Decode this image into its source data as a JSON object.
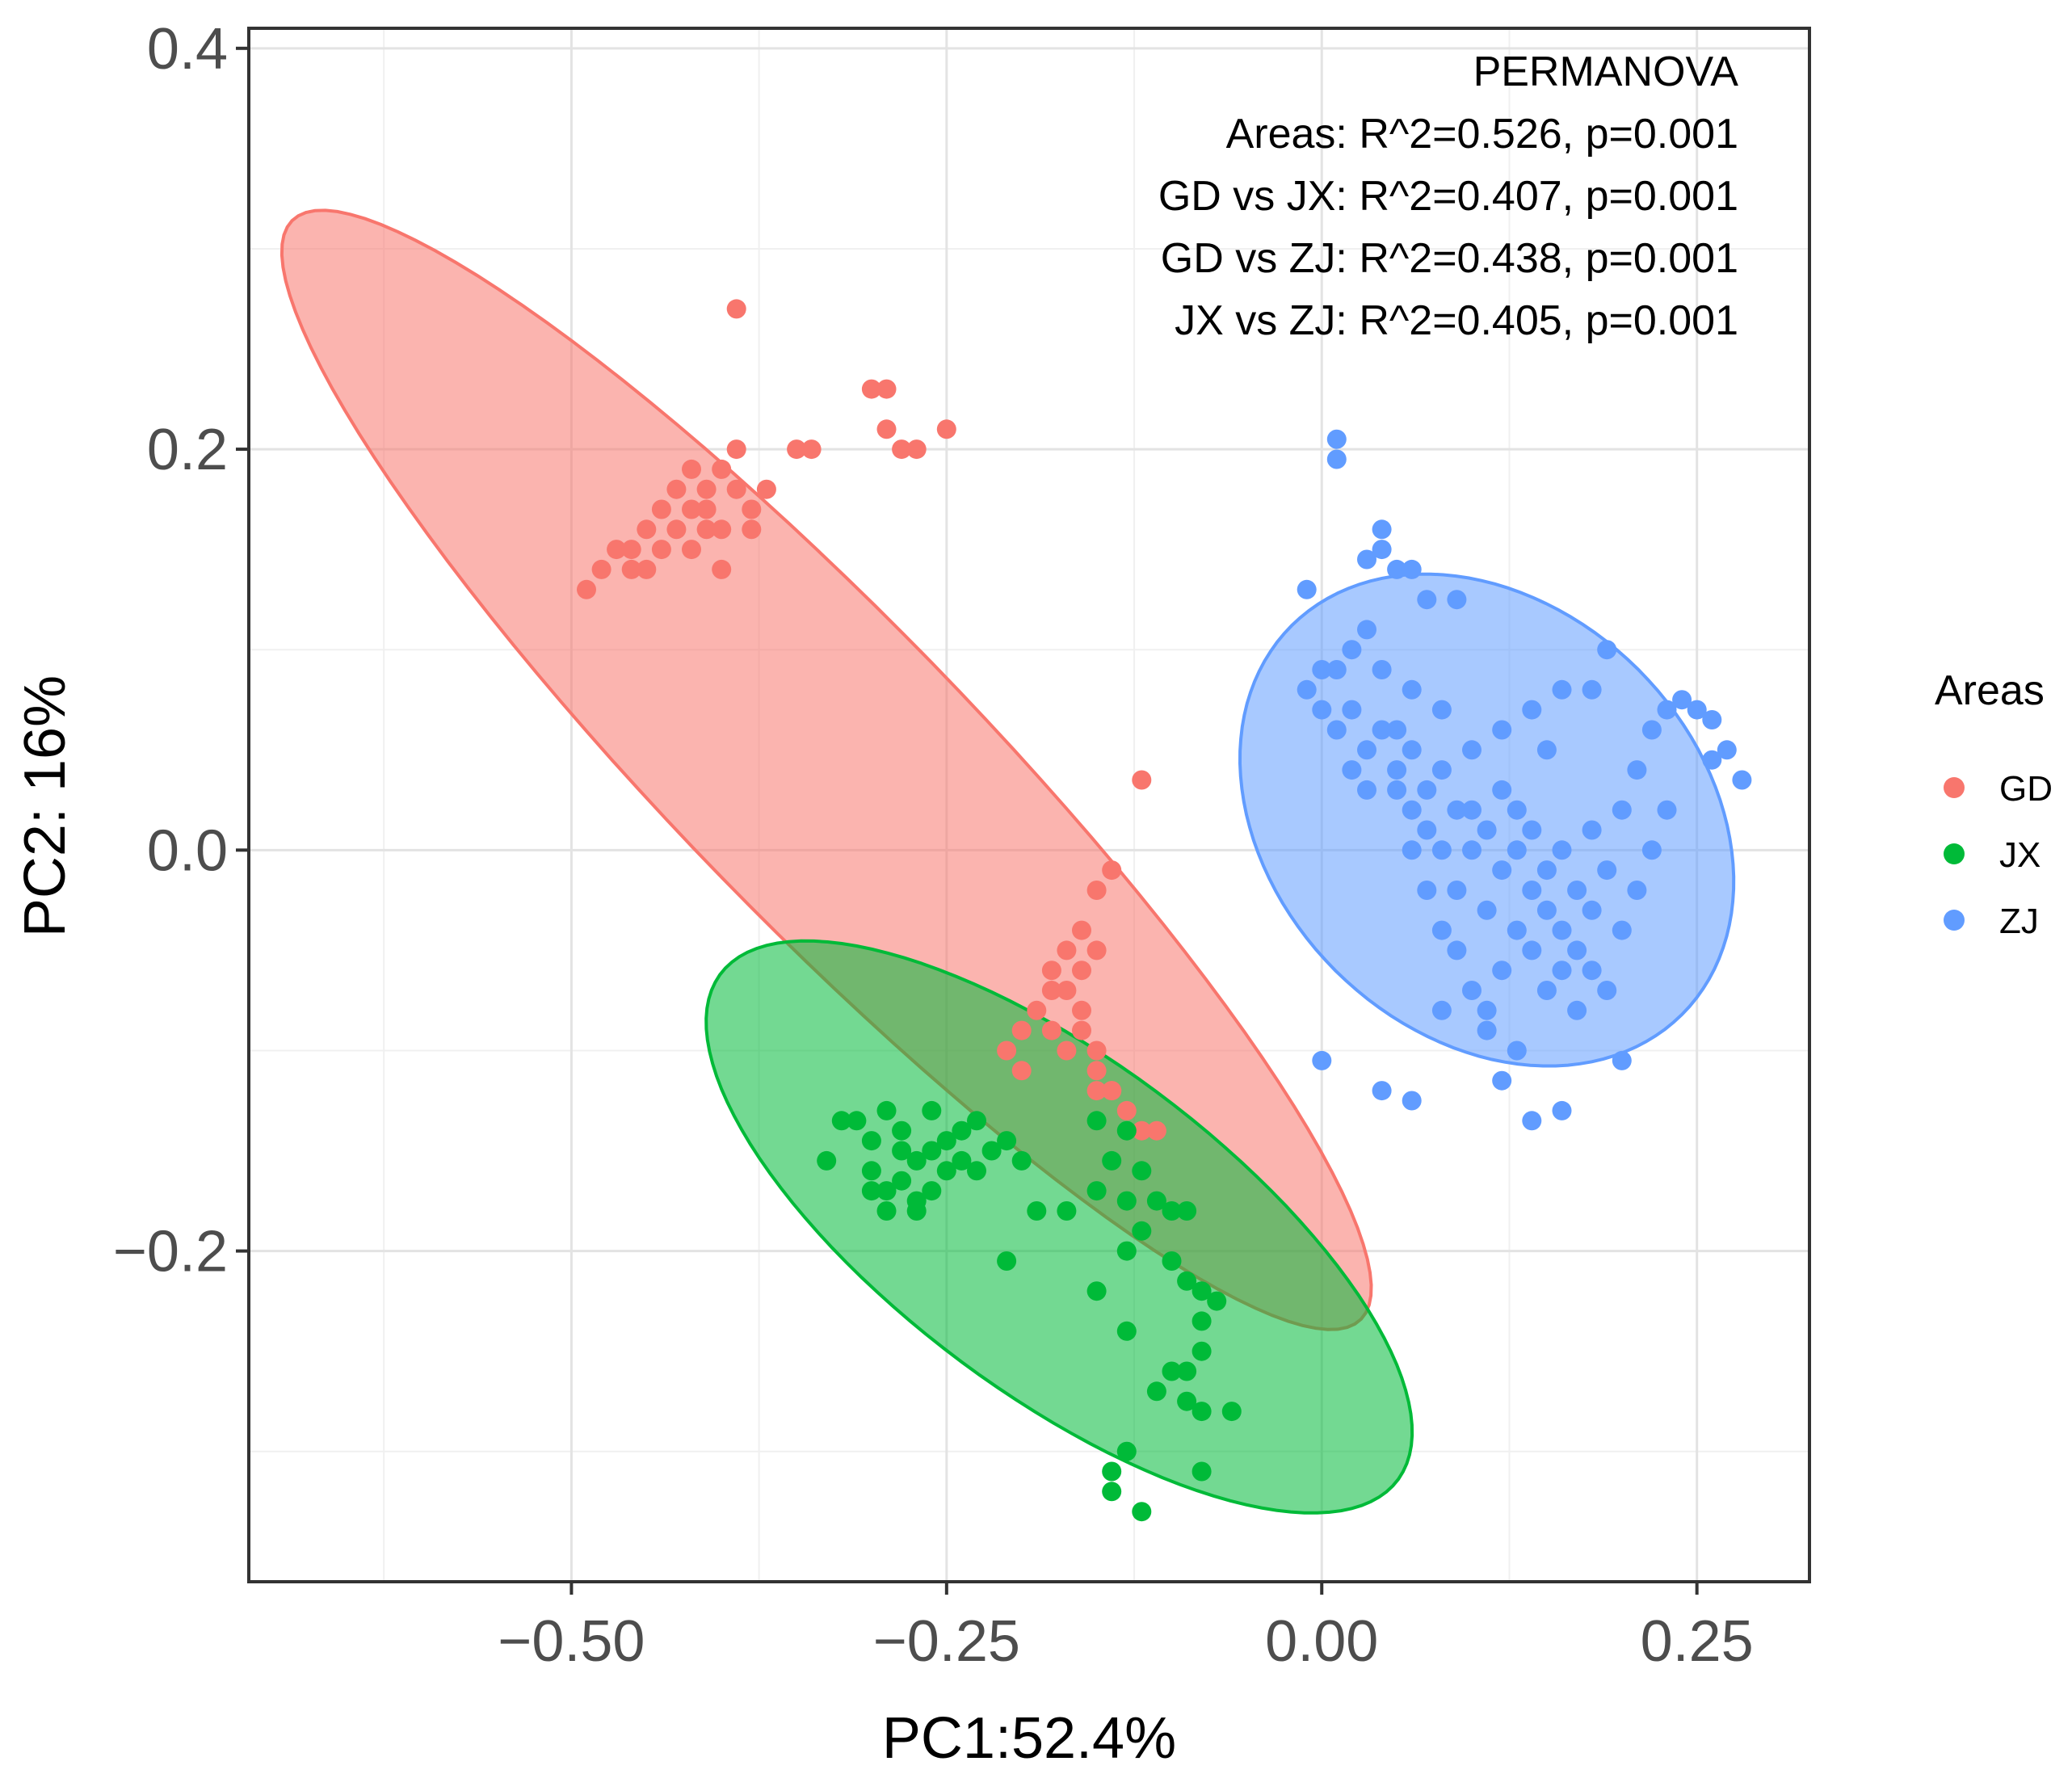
{
  "chart_data": {
    "type": "scatter",
    "xlabel": "PC1:52.4%",
    "ylabel": "PC2: 16%",
    "xlim": [
      -0.715,
      0.325
    ],
    "ylim": [
      -0.365,
      0.41
    ],
    "x_ticks": [
      -0.5,
      -0.25,
      0.0,
      0.25
    ],
    "x_tick_labels": [
      "−0.50",
      "−0.25",
      "0.00",
      "0.25"
    ],
    "y_ticks": [
      -0.2,
      0.0,
      0.2,
      0.4
    ],
    "y_tick_labels": [
      "−0.2",
      "0.0",
      "0.2",
      "0.4"
    ],
    "grid": true,
    "legend": {
      "title": "Areas",
      "position": "right",
      "entries": [
        "GD",
        "JX",
        "ZJ"
      ]
    },
    "annotation": {
      "lines": [
        "PERMANOVA",
        "Areas: R^2=0.526, p=0.001",
        "GD vs JX: R^2=0.407, p=0.001",
        "GD vs ZJ: R^2=0.438, p=0.001",
        "JX vs ZJ: R^2=0.405, p=0.001"
      ],
      "position": "top-right"
    },
    "series": [
      {
        "name": "GD",
        "color": "#F8766D",
        "ellipse": {
          "center": [
            -0.33,
            0.04
          ],
          "semi_axes": [
            0.45,
            0.085
          ],
          "angle_deg": -37
        },
        "points": [
          [
            -0.49,
            0.13
          ],
          [
            -0.48,
            0.14
          ],
          [
            -0.47,
            0.15
          ],
          [
            -0.46,
            0.14
          ],
          [
            -0.46,
            0.15
          ],
          [
            -0.45,
            0.16
          ],
          [
            -0.45,
            0.14
          ],
          [
            -0.44,
            0.15
          ],
          [
            -0.44,
            0.17
          ],
          [
            -0.43,
            0.18
          ],
          [
            -0.43,
            0.16
          ],
          [
            -0.42,
            0.19
          ],
          [
            -0.42,
            0.17
          ],
          [
            -0.42,
            0.15
          ],
          [
            -0.41,
            0.18
          ],
          [
            -0.41,
            0.16
          ],
          [
            -0.41,
            0.17
          ],
          [
            -0.4,
            0.19
          ],
          [
            -0.4,
            0.16
          ],
          [
            -0.4,
            0.14
          ],
          [
            -0.39,
            0.18
          ],
          [
            -0.39,
            0.2
          ],
          [
            -0.38,
            0.17
          ],
          [
            -0.38,
            0.16
          ],
          [
            -0.39,
            0.27
          ],
          [
            -0.37,
            0.18
          ],
          [
            -0.35,
            0.2
          ],
          [
            -0.34,
            0.2
          ],
          [
            -0.3,
            0.23
          ],
          [
            -0.29,
            0.23
          ],
          [
            -0.29,
            0.21
          ],
          [
            -0.28,
            0.2
          ],
          [
            -0.27,
            0.2
          ],
          [
            -0.25,
            0.21
          ],
          [
            -0.12,
            0.035
          ],
          [
            -0.14,
            -0.01
          ],
          [
            -0.15,
            -0.02
          ],
          [
            -0.16,
            -0.04
          ],
          [
            -0.17,
            -0.05
          ],
          [
            -0.18,
            -0.06
          ],
          [
            -0.17,
            -0.07
          ],
          [
            -0.16,
            -0.06
          ],
          [
            -0.15,
            -0.05
          ],
          [
            -0.16,
            -0.08
          ],
          [
            -0.18,
            -0.07
          ],
          [
            -0.19,
            -0.08
          ],
          [
            -0.2,
            -0.09
          ],
          [
            -0.21,
            -0.1
          ],
          [
            -0.18,
            -0.09
          ],
          [
            -0.16,
            -0.09
          ],
          [
            -0.15,
            -0.1
          ],
          [
            -0.15,
            -0.11
          ],
          [
            -0.14,
            -0.12
          ],
          [
            -0.14,
            -0.12
          ],
          [
            -0.13,
            -0.13
          ],
          [
            -0.12,
            -0.14
          ],
          [
            -0.11,
            -0.14
          ],
          [
            -0.2,
            -0.11
          ],
          [
            -0.17,
            -0.1
          ],
          [
            -0.15,
            -0.12
          ]
        ]
      },
      {
        "name": "JX",
        "color": "#00BA38",
        "ellipse": {
          "center": [
            -0.175,
            -0.188
          ],
          "semi_axes": [
            0.26,
            0.09
          ],
          "angle_deg": -27
        },
        "points": [
          [
            -0.33,
            -0.155
          ],
          [
            -0.32,
            -0.135
          ],
          [
            -0.31,
            -0.135
          ],
          [
            -0.3,
            -0.145
          ],
          [
            -0.3,
            -0.16
          ],
          [
            -0.29,
            -0.17
          ],
          [
            -0.29,
            -0.18
          ],
          [
            -0.29,
            -0.13
          ],
          [
            -0.28,
            -0.14
          ],
          [
            -0.28,
            -0.15
          ],
          [
            -0.28,
            -0.165
          ],
          [
            -0.27,
            -0.155
          ],
          [
            -0.27,
            -0.175
          ],
          [
            -0.26,
            -0.13
          ],
          [
            -0.26,
            -0.15
          ],
          [
            -0.26,
            -0.17
          ],
          [
            -0.25,
            -0.16
          ],
          [
            -0.25,
            -0.145
          ],
          [
            -0.24,
            -0.155
          ],
          [
            -0.24,
            -0.14
          ],
          [
            -0.23,
            -0.16
          ],
          [
            -0.23,
            -0.135
          ],
          [
            -0.22,
            -0.15
          ],
          [
            -0.21,
            -0.145
          ],
          [
            -0.2,
            -0.155
          ],
          [
            -0.19,
            -0.18
          ],
          [
            -0.21,
            -0.205
          ],
          [
            -0.15,
            -0.135
          ],
          [
            -0.15,
            -0.17
          ],
          [
            -0.14,
            -0.155
          ],
          [
            -0.13,
            -0.14
          ],
          [
            -0.13,
            -0.175
          ],
          [
            -0.12,
            -0.16
          ],
          [
            -0.12,
            -0.19
          ],
          [
            -0.11,
            -0.175
          ],
          [
            -0.1,
            -0.18
          ],
          [
            -0.1,
            -0.205
          ],
          [
            -0.09,
            -0.18
          ],
          [
            -0.09,
            -0.215
          ],
          [
            -0.08,
            -0.22
          ],
          [
            -0.08,
            -0.235
          ],
          [
            -0.07,
            -0.225
          ],
          [
            -0.08,
            -0.25
          ],
          [
            -0.09,
            -0.26
          ],
          [
            -0.1,
            -0.26
          ],
          [
            -0.11,
            -0.27
          ],
          [
            -0.09,
            -0.275
          ],
          [
            -0.08,
            -0.28
          ],
          [
            -0.06,
            -0.28
          ],
          [
            -0.13,
            -0.2
          ],
          [
            -0.15,
            -0.22
          ],
          [
            -0.13,
            -0.24
          ],
          [
            -0.13,
            -0.3
          ],
          [
            -0.14,
            -0.31
          ],
          [
            -0.14,
            -0.32
          ],
          [
            -0.12,
            -0.33
          ],
          [
            -0.08,
            -0.31
          ],
          [
            -0.17,
            -0.18
          ],
          [
            -0.27,
            -0.18
          ],
          [
            -0.3,
            -0.17
          ]
        ]
      },
      {
        "name": "ZJ",
        "color": "#619CFF",
        "ellipse": {
          "center": [
            0.11,
            0.015
          ],
          "semi_axes": [
            0.17,
            0.115
          ],
          "angle_deg": -20
        },
        "points": [
          [
            0.01,
            0.205
          ],
          [
            0.01,
            0.195
          ],
          [
            0.04,
            0.16
          ],
          [
            0.04,
            0.15
          ],
          [
            0.03,
            0.145
          ],
          [
            0.05,
            0.14
          ],
          [
            0.06,
            0.14
          ],
          [
            0.07,
            0.125
          ],
          [
            0.09,
            0.125
          ],
          [
            -0.01,
            0.13
          ],
          [
            0.0,
            0.09
          ],
          [
            -0.01,
            0.08
          ],
          [
            0.02,
            0.1
          ],
          [
            0.03,
            0.11
          ],
          [
            0.02,
            0.07
          ],
          [
            0.01,
            0.06
          ],
          [
            0.03,
            0.05
          ],
          [
            0.04,
            0.06
          ],
          [
            0.05,
            0.04
          ],
          [
            0.06,
            0.05
          ],
          [
            0.07,
            0.03
          ],
          [
            0.08,
            0.04
          ],
          [
            0.09,
            0.02
          ],
          [
            0.1,
            0.0
          ],
          [
            0.11,
            0.01
          ],
          [
            0.12,
            -0.01
          ],
          [
            0.13,
            0.02
          ],
          [
            0.14,
            -0.02
          ],
          [
            0.15,
            -0.03
          ],
          [
            0.16,
            -0.04
          ],
          [
            0.17,
            -0.05
          ],
          [
            0.18,
            -0.03
          ],
          [
            0.19,
            -0.01
          ],
          [
            0.2,
            0.02
          ],
          [
            0.21,
            0.04
          ],
          [
            0.22,
            0.06
          ],
          [
            0.23,
            0.07
          ],
          [
            0.24,
            0.075
          ],
          [
            0.25,
            0.07
          ],
          [
            0.26,
            0.065
          ],
          [
            0.27,
            0.05
          ],
          [
            0.28,
            0.035
          ],
          [
            0.26,
            0.045
          ],
          [
            0.19,
            0.1
          ],
          [
            0.18,
            0.08
          ],
          [
            0.16,
            0.08
          ],
          [
            0.14,
            0.07
          ],
          [
            0.12,
            0.06
          ],
          [
            0.1,
            0.05
          ],
          [
            0.08,
            0.07
          ],
          [
            0.06,
            0.08
          ],
          [
            0.04,
            0.09
          ],
          [
            0.05,
            0.03
          ],
          [
            0.06,
            0.0
          ],
          [
            0.07,
            -0.02
          ],
          [
            0.08,
            -0.04
          ],
          [
            0.09,
            -0.05
          ],
          [
            0.1,
            -0.07
          ],
          [
            0.11,
            -0.08
          ],
          [
            0.12,
            -0.06
          ],
          [
            0.13,
            -0.04
          ],
          [
            0.14,
            -0.05
          ],
          [
            0.15,
            -0.07
          ],
          [
            0.16,
            -0.06
          ],
          [
            0.17,
            -0.08
          ],
          [
            0.18,
            -0.06
          ],
          [
            0.19,
            -0.07
          ],
          [
            0.2,
            -0.04
          ],
          [
            0.21,
            -0.02
          ],
          [
            0.22,
            0.0
          ],
          [
            0.23,
            0.02
          ],
          [
            0.1,
            0.02
          ],
          [
            0.11,
            -0.03
          ],
          [
            0.12,
            0.03
          ],
          [
            0.13,
            0.0
          ],
          [
            0.14,
            0.01
          ],
          [
            0.15,
            -0.01
          ],
          [
            0.16,
            0.0
          ],
          [
            0.17,
            -0.02
          ],
          [
            0.18,
            0.01
          ],
          [
            0.09,
            -0.02
          ],
          [
            0.08,
            0.0
          ],
          [
            0.07,
            0.01
          ],
          [
            0.06,
            0.02
          ],
          [
            0.05,
            0.06
          ],
          [
            0.03,
            0.03
          ],
          [
            0.02,
            0.04
          ],
          [
            0.01,
            0.09
          ],
          [
            0.0,
            0.07
          ],
          [
            0.15,
            0.05
          ],
          [
            0.0,
            -0.105
          ],
          [
            0.04,
            -0.12
          ],
          [
            0.06,
            -0.125
          ],
          [
            0.08,
            -0.08
          ],
          [
            0.11,
            -0.09
          ],
          [
            0.13,
            -0.1
          ],
          [
            0.14,
            -0.135
          ],
          [
            0.16,
            -0.13
          ],
          [
            0.2,
            -0.105
          ],
          [
            0.12,
            -0.115
          ]
        ]
      }
    ]
  }
}
